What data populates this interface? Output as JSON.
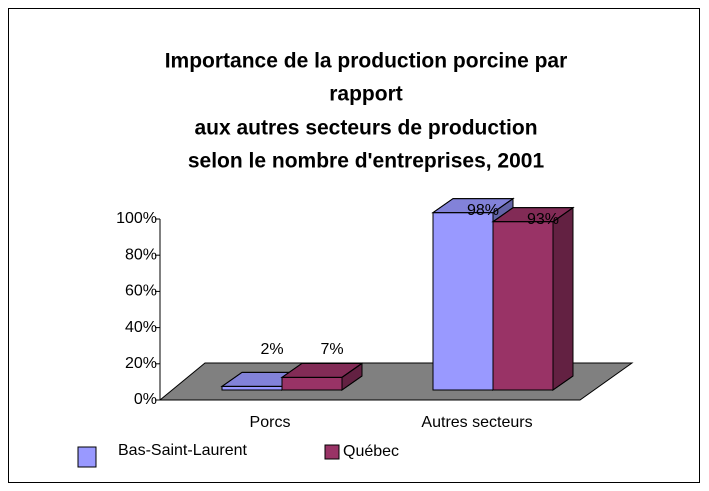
{
  "chart_data": {
    "type": "bar3d",
    "title": [
      "Importance de la production porcine par",
      "rapport",
      "aux autres secteurs de production",
      "selon le nombre d'entreprises, 2001"
    ],
    "categories": [
      "Porcs",
      "Autres secteurs"
    ],
    "series": [
      {
        "name": "Bas-Saint-Laurent",
        "color": "#9999ff",
        "values": [
          2,
          98
        ],
        "value_labels": [
          "2%",
          "98%"
        ]
      },
      {
        "name": "Québec",
        "color": "#993366",
        "values": [
          7,
          93
        ],
        "value_labels": [
          "7%",
          "93%"
        ]
      }
    ],
    "ylim": [
      0,
      100
    ],
    "yticks": [
      {
        "value": 0,
        "label": "0%"
      },
      {
        "value": 20,
        "label": "20%"
      },
      {
        "value": 40,
        "label": "40%"
      },
      {
        "value": 60,
        "label": "60%"
      },
      {
        "value": 80,
        "label": "80%"
      },
      {
        "value": 100,
        "label": "100%"
      }
    ]
  }
}
